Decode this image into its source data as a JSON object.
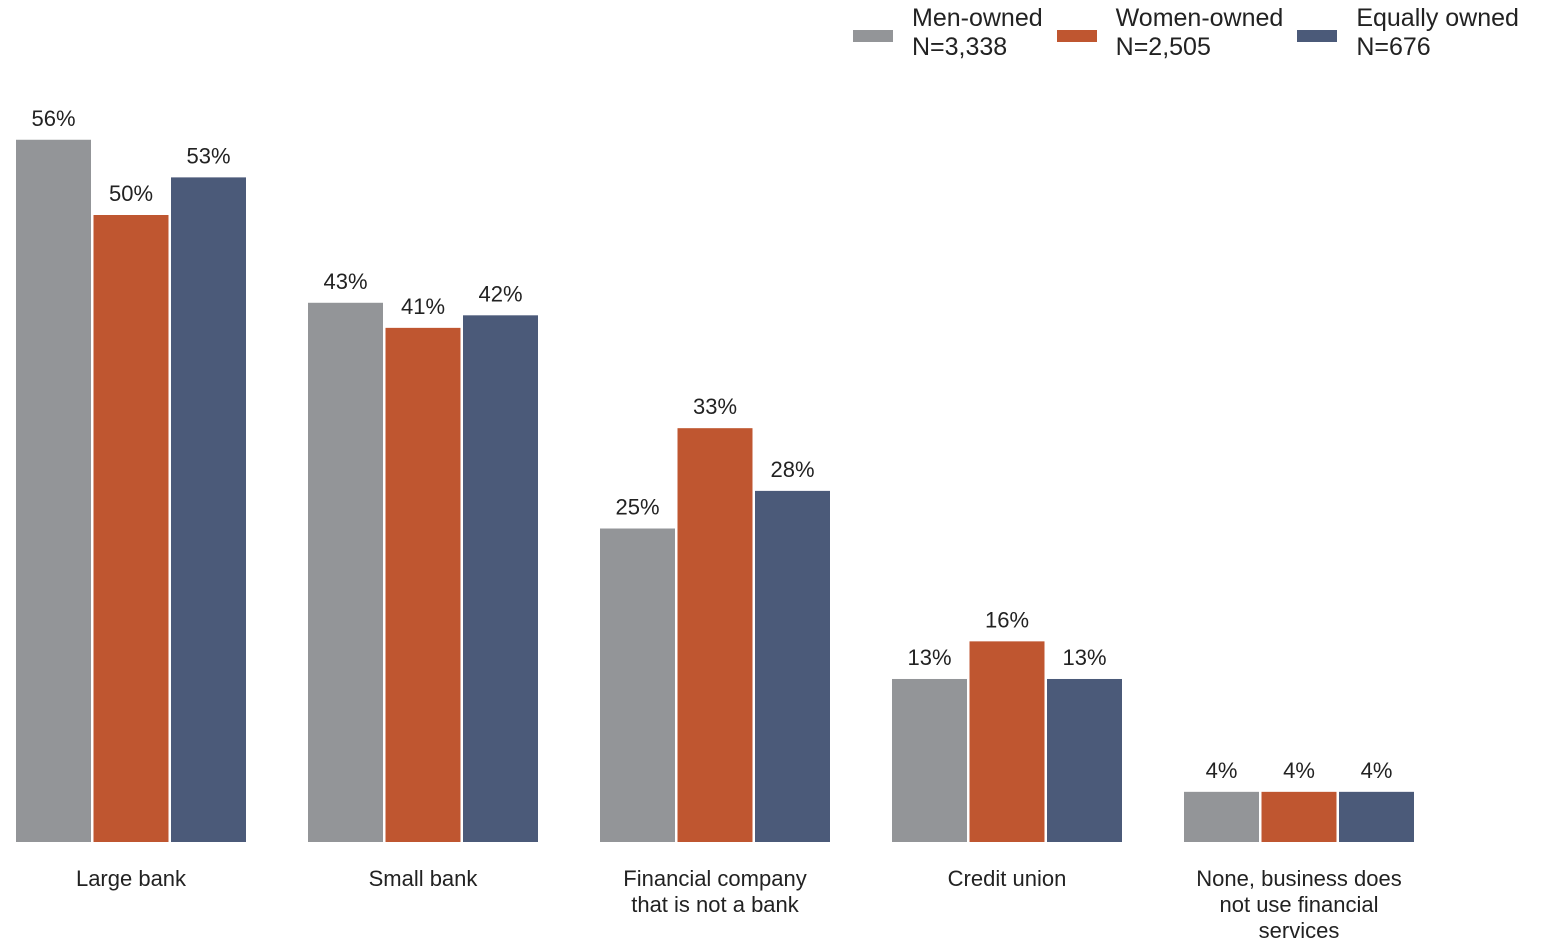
{
  "chart_data": {
    "type": "bar",
    "categories": [
      [
        "Large bank"
      ],
      [
        "Small bank"
      ],
      [
        "Financial company",
        "that is not a bank"
      ],
      [
        "Credit union"
      ],
      [
        "None, business does",
        "not use financial",
        "services"
      ]
    ],
    "series": [
      {
        "name": "Men-owned",
        "n": "N=3,338",
        "color": "#939598",
        "values": [
          56,
          43,
          25,
          13,
          4
        ],
        "labels": [
          "56%",
          "43%",
          "25%",
          "13%",
          "4%"
        ]
      },
      {
        "name": "Women-owned",
        "n": "N=2,505",
        "color": "#bf5630",
        "values": [
          50,
          41,
          33,
          16,
          4
        ],
        "labels": [
          "50%",
          "41%",
          "33%",
          "16%",
          "4%"
        ]
      },
      {
        "name": "Equally owned",
        "n": "N=676",
        "color": "#4b5a79",
        "values": [
          53,
          42,
          28,
          13,
          4
        ],
        "labels": [
          "53%",
          "42%",
          "28%",
          "13%",
          "4%"
        ]
      }
    ],
    "ylim": [
      0,
      60
    ],
    "grid": false,
    "legend": "top-right",
    "title": "",
    "xlabel": "",
    "ylabel": ""
  }
}
